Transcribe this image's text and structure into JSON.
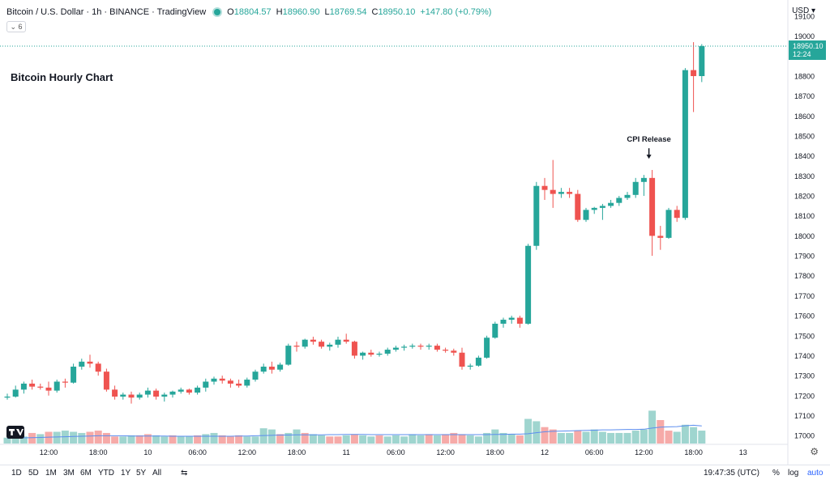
{
  "header": {
    "symbol_title": "Bitcoin / U.S. Dollar · 1h · BINANCE · TradingView",
    "ohlc": [
      {
        "k": "O",
        "v": "18804.57"
      },
      {
        "k": "H",
        "v": "18960.90"
      },
      {
        "k": "L",
        "v": "18769.54"
      },
      {
        "k": "C",
        "v": "18950.10"
      }
    ],
    "change": "+147.80 (+0.79%)",
    "indicator_toggle": "⌄ 6",
    "currency": "USD ▾"
  },
  "colors": {
    "up": "#26a69a",
    "down": "#ef5350",
    "ma": "#5b8def"
  },
  "chart_data": {
    "type": "candlestick",
    "title": "Bitcoin Hourly Chart",
    "ylim": [
      16960,
      19100
    ],
    "y_ticks": [
      17000,
      17100,
      17200,
      17300,
      17400,
      17500,
      17600,
      17700,
      17800,
      17900,
      18000,
      18100,
      18200,
      18300,
      18400,
      18500,
      18600,
      18700,
      18800,
      18900,
      19000,
      19100
    ],
    "x_ticks": [
      {
        "i": 5,
        "label": "12:00"
      },
      {
        "i": 11,
        "label": "18:00"
      },
      {
        "i": 17,
        "label": "10"
      },
      {
        "i": 23,
        "label": "06:00"
      },
      {
        "i": 29,
        "label": "12:00"
      },
      {
        "i": 35,
        "label": "18:00"
      },
      {
        "i": 41,
        "label": "11"
      },
      {
        "i": 47,
        "label": "06:00"
      },
      {
        "i": 53,
        "label": "12:00"
      },
      {
        "i": 59,
        "label": "18:00"
      },
      {
        "i": 65,
        "label": "12"
      },
      {
        "i": 71,
        "label": "06:00"
      },
      {
        "i": 77,
        "label": "12:00"
      },
      {
        "i": 83,
        "label": "18:00"
      },
      {
        "i": 89,
        "label": "13"
      }
    ],
    "candles": [
      [
        17190,
        17210,
        17180,
        17195
      ],
      [
        17195,
        17250,
        17190,
        17230
      ],
      [
        17230,
        17270,
        17210,
        17260
      ],
      [
        17260,
        17280,
        17230,
        17245
      ],
      [
        17245,
        17260,
        17230,
        17240
      ],
      [
        17240,
        17270,
        17200,
        17225
      ],
      [
        17225,
        17280,
        17215,
        17270
      ],
      [
        17270,
        17285,
        17240,
        17265
      ],
      [
        17265,
        17360,
        17260,
        17345
      ],
      [
        17345,
        17385,
        17330,
        17370
      ],
      [
        17370,
        17405,
        17340,
        17360
      ],
      [
        17360,
        17370,
        17300,
        17320
      ],
      [
        17320,
        17335,
        17220,
        17230
      ],
      [
        17230,
        17250,
        17180,
        17195
      ],
      [
        17195,
        17215,
        17180,
        17205
      ],
      [
        17205,
        17220,
        17160,
        17190
      ],
      [
        17190,
        17215,
        17180,
        17205
      ],
      [
        17205,
        17240,
        17190,
        17225
      ],
      [
        17225,
        17235,
        17180,
        17195
      ],
      [
        17195,
        17215,
        17170,
        17205
      ],
      [
        17205,
        17225,
        17190,
        17220
      ],
      [
        17220,
        17240,
        17210,
        17230
      ],
      [
        17230,
        17235,
        17205,
        17215
      ],
      [
        17215,
        17250,
        17205,
        17240
      ],
      [
        17240,
        17285,
        17220,
        17270
      ],
      [
        17270,
        17295,
        17255,
        17285
      ],
      [
        17285,
        17300,
        17260,
        17275
      ],
      [
        17275,
        17285,
        17240,
        17260
      ],
      [
        17260,
        17280,
        17240,
        17250
      ],
      [
        17250,
        17290,
        17240,
        17280
      ],
      [
        17280,
        17330,
        17270,
        17320
      ],
      [
        17320,
        17360,
        17310,
        17345
      ],
      [
        17345,
        17370,
        17310,
        17330
      ],
      [
        17330,
        17365,
        17320,
        17355
      ],
      [
        17355,
        17460,
        17350,
        17450
      ],
      [
        17450,
        17470,
        17420,
        17445
      ],
      [
        17445,
        17485,
        17435,
        17480
      ],
      [
        17480,
        17495,
        17455,
        17470
      ],
      [
        17470,
        17480,
        17435,
        17445
      ],
      [
        17445,
        17465,
        17425,
        17455
      ],
      [
        17455,
        17495,
        17440,
        17480
      ],
      [
        17480,
        17510,
        17460,
        17470
      ],
      [
        17470,
        17475,
        17385,
        17400
      ],
      [
        17400,
        17420,
        17380,
        17415
      ],
      [
        17415,
        17430,
        17395,
        17405
      ],
      [
        17405,
        17420,
        17395,
        17410
      ],
      [
        17410,
        17440,
        17400,
        17430
      ],
      [
        17430,
        17450,
        17420,
        17440
      ],
      [
        17440,
        17455,
        17425,
        17445
      ],
      [
        17445,
        17460,
        17435,
        17450
      ],
      [
        17450,
        17460,
        17430,
        17445
      ],
      [
        17445,
        17460,
        17430,
        17450
      ],
      [
        17450,
        17460,
        17420,
        17430
      ],
      [
        17430,
        17440,
        17415,
        17425
      ],
      [
        17425,
        17435,
        17400,
        17415
      ],
      [
        17415,
        17440,
        17330,
        17345
      ],
      [
        17345,
        17360,
        17330,
        17350
      ],
      [
        17350,
        17400,
        17345,
        17390
      ],
      [
        17390,
        17500,
        17385,
        17490
      ],
      [
        17490,
        17570,
        17485,
        17560
      ],
      [
        17560,
        17590,
        17540,
        17580
      ],
      [
        17580,
        17600,
        17560,
        17590
      ],
      [
        17590,
        17600,
        17540,
        17560
      ],
      [
        17560,
        17960,
        17555,
        17950
      ],
      [
        17950,
        18270,
        17930,
        18250
      ],
      [
        18250,
        18290,
        18180,
        18230
      ],
      [
        18230,
        18380,
        18140,
        18210
      ],
      [
        18210,
        18240,
        18190,
        18220
      ],
      [
        18220,
        18240,
        18190,
        18210
      ],
      [
        18210,
        18230,
        18070,
        18080
      ],
      [
        18080,
        18140,
        18070,
        18130
      ],
      [
        18130,
        18145,
        18110,
        18140
      ],
      [
        18140,
        18160,
        18080,
        18150
      ],
      [
        18150,
        18180,
        18140,
        18165
      ],
      [
        18165,
        18200,
        18150,
        18190
      ],
      [
        18190,
        18220,
        18180,
        18205
      ],
      [
        18205,
        18290,
        18190,
        18270
      ],
      [
        18270,
        18305,
        18200,
        18290
      ],
      [
        18290,
        18330,
        17900,
        18000
      ],
      [
        18000,
        18050,
        17930,
        17990
      ],
      [
        17990,
        18140,
        17985,
        18130
      ],
      [
        18130,
        18150,
        18070,
        18090
      ],
      [
        18090,
        18840,
        18080,
        18830
      ],
      [
        18830,
        18970,
        18620,
        18800
      ],
      [
        18800,
        18960,
        18770,
        18950
      ]
    ],
    "volume": [
      [
        0.25,
        "up"
      ],
      [
        0.35,
        "up"
      ],
      [
        0.3,
        "up"
      ],
      [
        0.45,
        "down"
      ],
      [
        0.4,
        "up"
      ],
      [
        0.5,
        "down"
      ],
      [
        0.5,
        "up"
      ],
      [
        0.55,
        "up"
      ],
      [
        0.5,
        "up"
      ],
      [
        0.45,
        "up"
      ],
      [
        0.5,
        "down"
      ],
      [
        0.55,
        "down"
      ],
      [
        0.45,
        "down"
      ],
      [
        0.3,
        "down"
      ],
      [
        0.3,
        "up"
      ],
      [
        0.35,
        "up"
      ],
      [
        0.35,
        "down"
      ],
      [
        0.4,
        "down"
      ],
      [
        0.35,
        "up"
      ],
      [
        0.3,
        "up"
      ],
      [
        0.35,
        "down"
      ],
      [
        0.3,
        "up"
      ],
      [
        0.3,
        "up"
      ],
      [
        0.35,
        "down"
      ],
      [
        0.4,
        "up"
      ],
      [
        0.45,
        "up"
      ],
      [
        0.35,
        "down"
      ],
      [
        0.3,
        "down"
      ],
      [
        0.35,
        "down"
      ],
      [
        0.3,
        "up"
      ],
      [
        0.3,
        "up"
      ],
      [
        0.65,
        "up"
      ],
      [
        0.6,
        "up"
      ],
      [
        0.4,
        "down"
      ],
      [
        0.45,
        "up"
      ],
      [
        0.6,
        "up"
      ],
      [
        0.45,
        "down"
      ],
      [
        0.4,
        "up"
      ],
      [
        0.35,
        "up"
      ],
      [
        0.3,
        "down"
      ],
      [
        0.3,
        "down"
      ],
      [
        0.35,
        "up"
      ],
      [
        0.4,
        "down"
      ],
      [
        0.35,
        "up"
      ],
      [
        0.3,
        "up"
      ],
      [
        0.35,
        "down"
      ],
      [
        0.3,
        "up"
      ],
      [
        0.35,
        "up"
      ],
      [
        0.3,
        "up"
      ],
      [
        0.4,
        "up"
      ],
      [
        0.35,
        "up"
      ],
      [
        0.4,
        "down"
      ],
      [
        0.35,
        "up"
      ],
      [
        0.4,
        "down"
      ],
      [
        0.45,
        "down"
      ],
      [
        0.4,
        "down"
      ],
      [
        0.35,
        "up"
      ],
      [
        0.3,
        "up"
      ],
      [
        0.45,
        "up"
      ],
      [
        0.6,
        "up"
      ],
      [
        0.45,
        "up"
      ],
      [
        0.4,
        "up"
      ],
      [
        0.35,
        "down"
      ],
      [
        1.05,
        "up"
      ],
      [
        0.95,
        "up"
      ],
      [
        0.7,
        "down"
      ],
      [
        0.6,
        "down"
      ],
      [
        0.45,
        "up"
      ],
      [
        0.45,
        "up"
      ],
      [
        0.55,
        "down"
      ],
      [
        0.5,
        "up"
      ],
      [
        0.6,
        "up"
      ],
      [
        0.5,
        "up"
      ],
      [
        0.45,
        "up"
      ],
      [
        0.45,
        "up"
      ],
      [
        0.45,
        "up"
      ],
      [
        0.55,
        "up"
      ],
      [
        0.6,
        "up"
      ],
      [
        1.4,
        "up"
      ],
      [
        1.0,
        "down"
      ],
      [
        0.55,
        "down"
      ],
      [
        0.5,
        "up"
      ],
      [
        0.8,
        "up"
      ],
      [
        0.7,
        "up"
      ],
      [
        0.55,
        "up"
      ]
    ],
    "ma": [
      0.22,
      0.23,
      0.24,
      0.25,
      0.26,
      0.27,
      0.28,
      0.29,
      0.3,
      0.31,
      0.32,
      0.33,
      0.33,
      0.33,
      0.33,
      0.32,
      0.32,
      0.32,
      0.32,
      0.32,
      0.31,
      0.31,
      0.31,
      0.31,
      0.31,
      0.31,
      0.31,
      0.31,
      0.32,
      0.32,
      0.33,
      0.34,
      0.35,
      0.36,
      0.36,
      0.37,
      0.37,
      0.37,
      0.37,
      0.38,
      0.38,
      0.39,
      0.39,
      0.39,
      0.38,
      0.38,
      0.38,
      0.38,
      0.38,
      0.38,
      0.38,
      0.38,
      0.38,
      0.38,
      0.38,
      0.38,
      0.38,
      0.38,
      0.38,
      0.39,
      0.39,
      0.4,
      0.4,
      0.42,
      0.46,
      0.5,
      0.52,
      0.53,
      0.54,
      0.55,
      0.56,
      0.57,
      0.58,
      0.58,
      0.59,
      0.6,
      0.6,
      0.61,
      0.66,
      0.7,
      0.71,
      0.72,
      0.76,
      0.78,
      0.75
    ],
    "price_label": {
      "value": 18950.1,
      "text": "18950.10",
      "countdown": "12:24"
    },
    "annotation": {
      "text": "CPI Release",
      "i": 78,
      "y": 18390
    }
  },
  "toolbar": {
    "ranges": [
      "1D",
      "5D",
      "1M",
      "3M",
      "6M",
      "YTD",
      "1Y",
      "5Y",
      "All"
    ],
    "compare_icon": "⇆",
    "time": "19:47:35 (UTC)",
    "percent": "%",
    "log": "log",
    "auto": "auto"
  }
}
